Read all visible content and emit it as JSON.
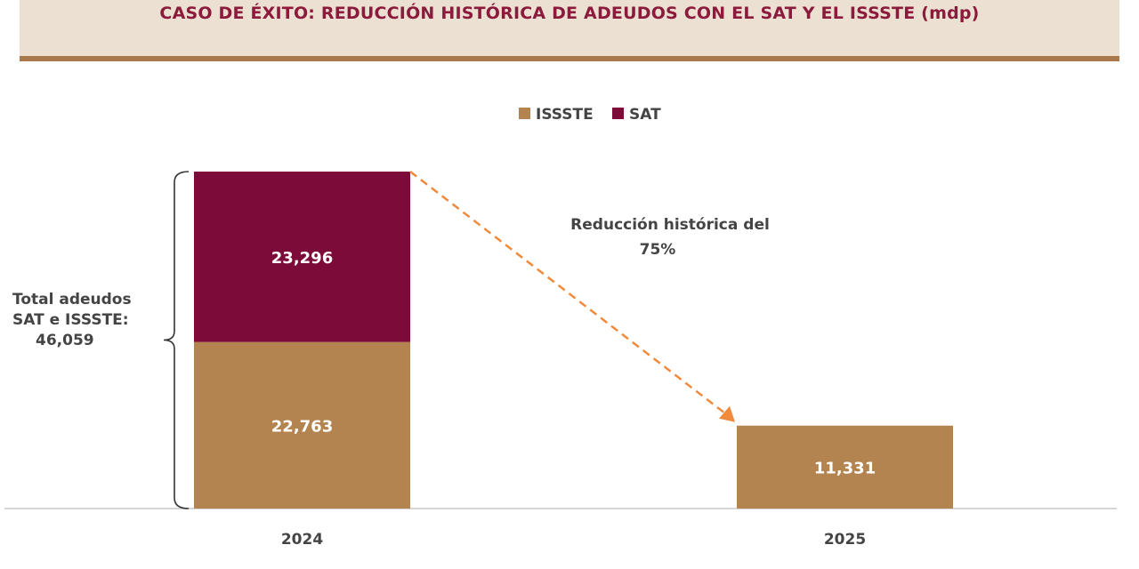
{
  "chart_data": {
    "type": "bar",
    "stacked": true,
    "title": "CASO DE ÉXITO: REDUCCIÓN HISTÓRICA DE ADEUDOS CON EL SAT Y EL ISSSTE (mdp)",
    "categories": [
      "2024",
      "2025"
    ],
    "series": [
      {
        "name": "ISSSTE",
        "values": [
          22763,
          11331
        ],
        "labels": [
          "22,763",
          "11,331"
        ],
        "color": "#b3844f"
      },
      {
        "name": "SAT",
        "values": [
          23296,
          0
        ],
        "labels": [
          "23,296",
          ""
        ],
        "color": "#7d0b3a"
      }
    ],
    "ylim": [
      0,
      46059
    ],
    "grid": false,
    "legend": "top-center",
    "annotations": {
      "total_label": [
        "Total adeudos",
        "SAT e ISSSTE:",
        "46,059"
      ],
      "reduction_label": [
        "Reducción histórica del",
        "75%"
      ],
      "arrow_color": "#f08a3c"
    }
  }
}
